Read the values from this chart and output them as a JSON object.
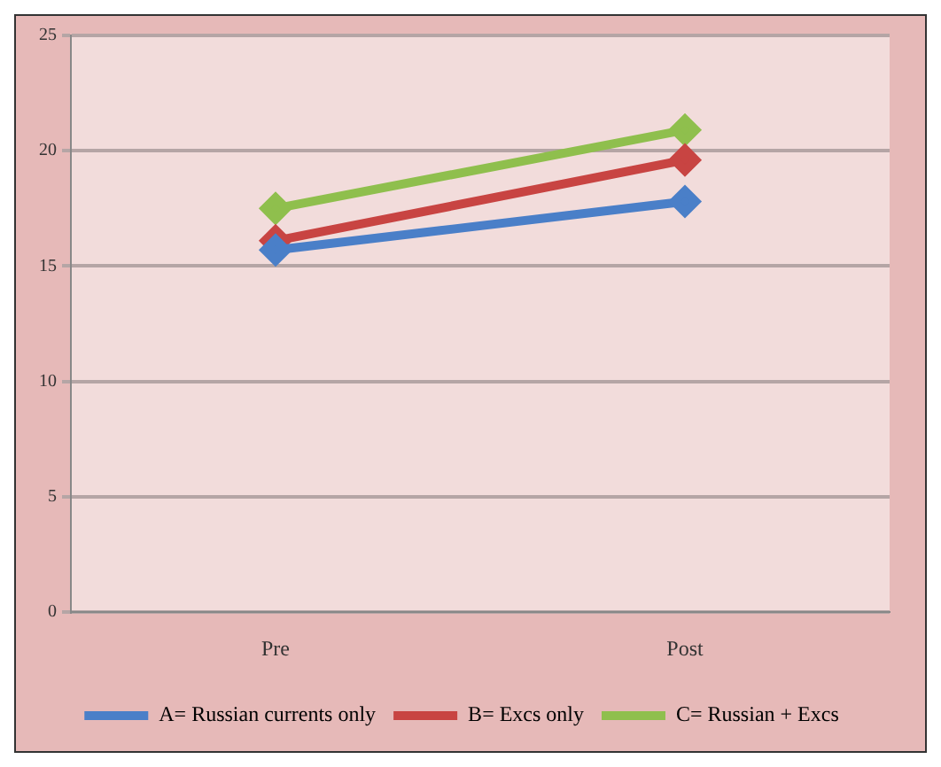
{
  "chart_data": {
    "type": "line",
    "categories": [
      "Pre",
      "Post"
    ],
    "series": [
      {
        "name": "A= Russian currents only",
        "color": "#4a7fc8",
        "values": [
          15.7,
          17.8
        ]
      },
      {
        "name": "B= Excs only",
        "color": "#c84442",
        "values": [
          16.1,
          19.6
        ]
      },
      {
        "name": "C= Russian + Excs",
        "color": "#8fbf4d",
        "values": [
          17.5,
          20.9
        ]
      }
    ],
    "ylim": [
      0,
      25
    ],
    "yticks": [
      0,
      5,
      10,
      15,
      20,
      25
    ],
    "grid": "y",
    "legend": "bottom",
    "marker": "diamond",
    "line_style": "solid"
  }
}
